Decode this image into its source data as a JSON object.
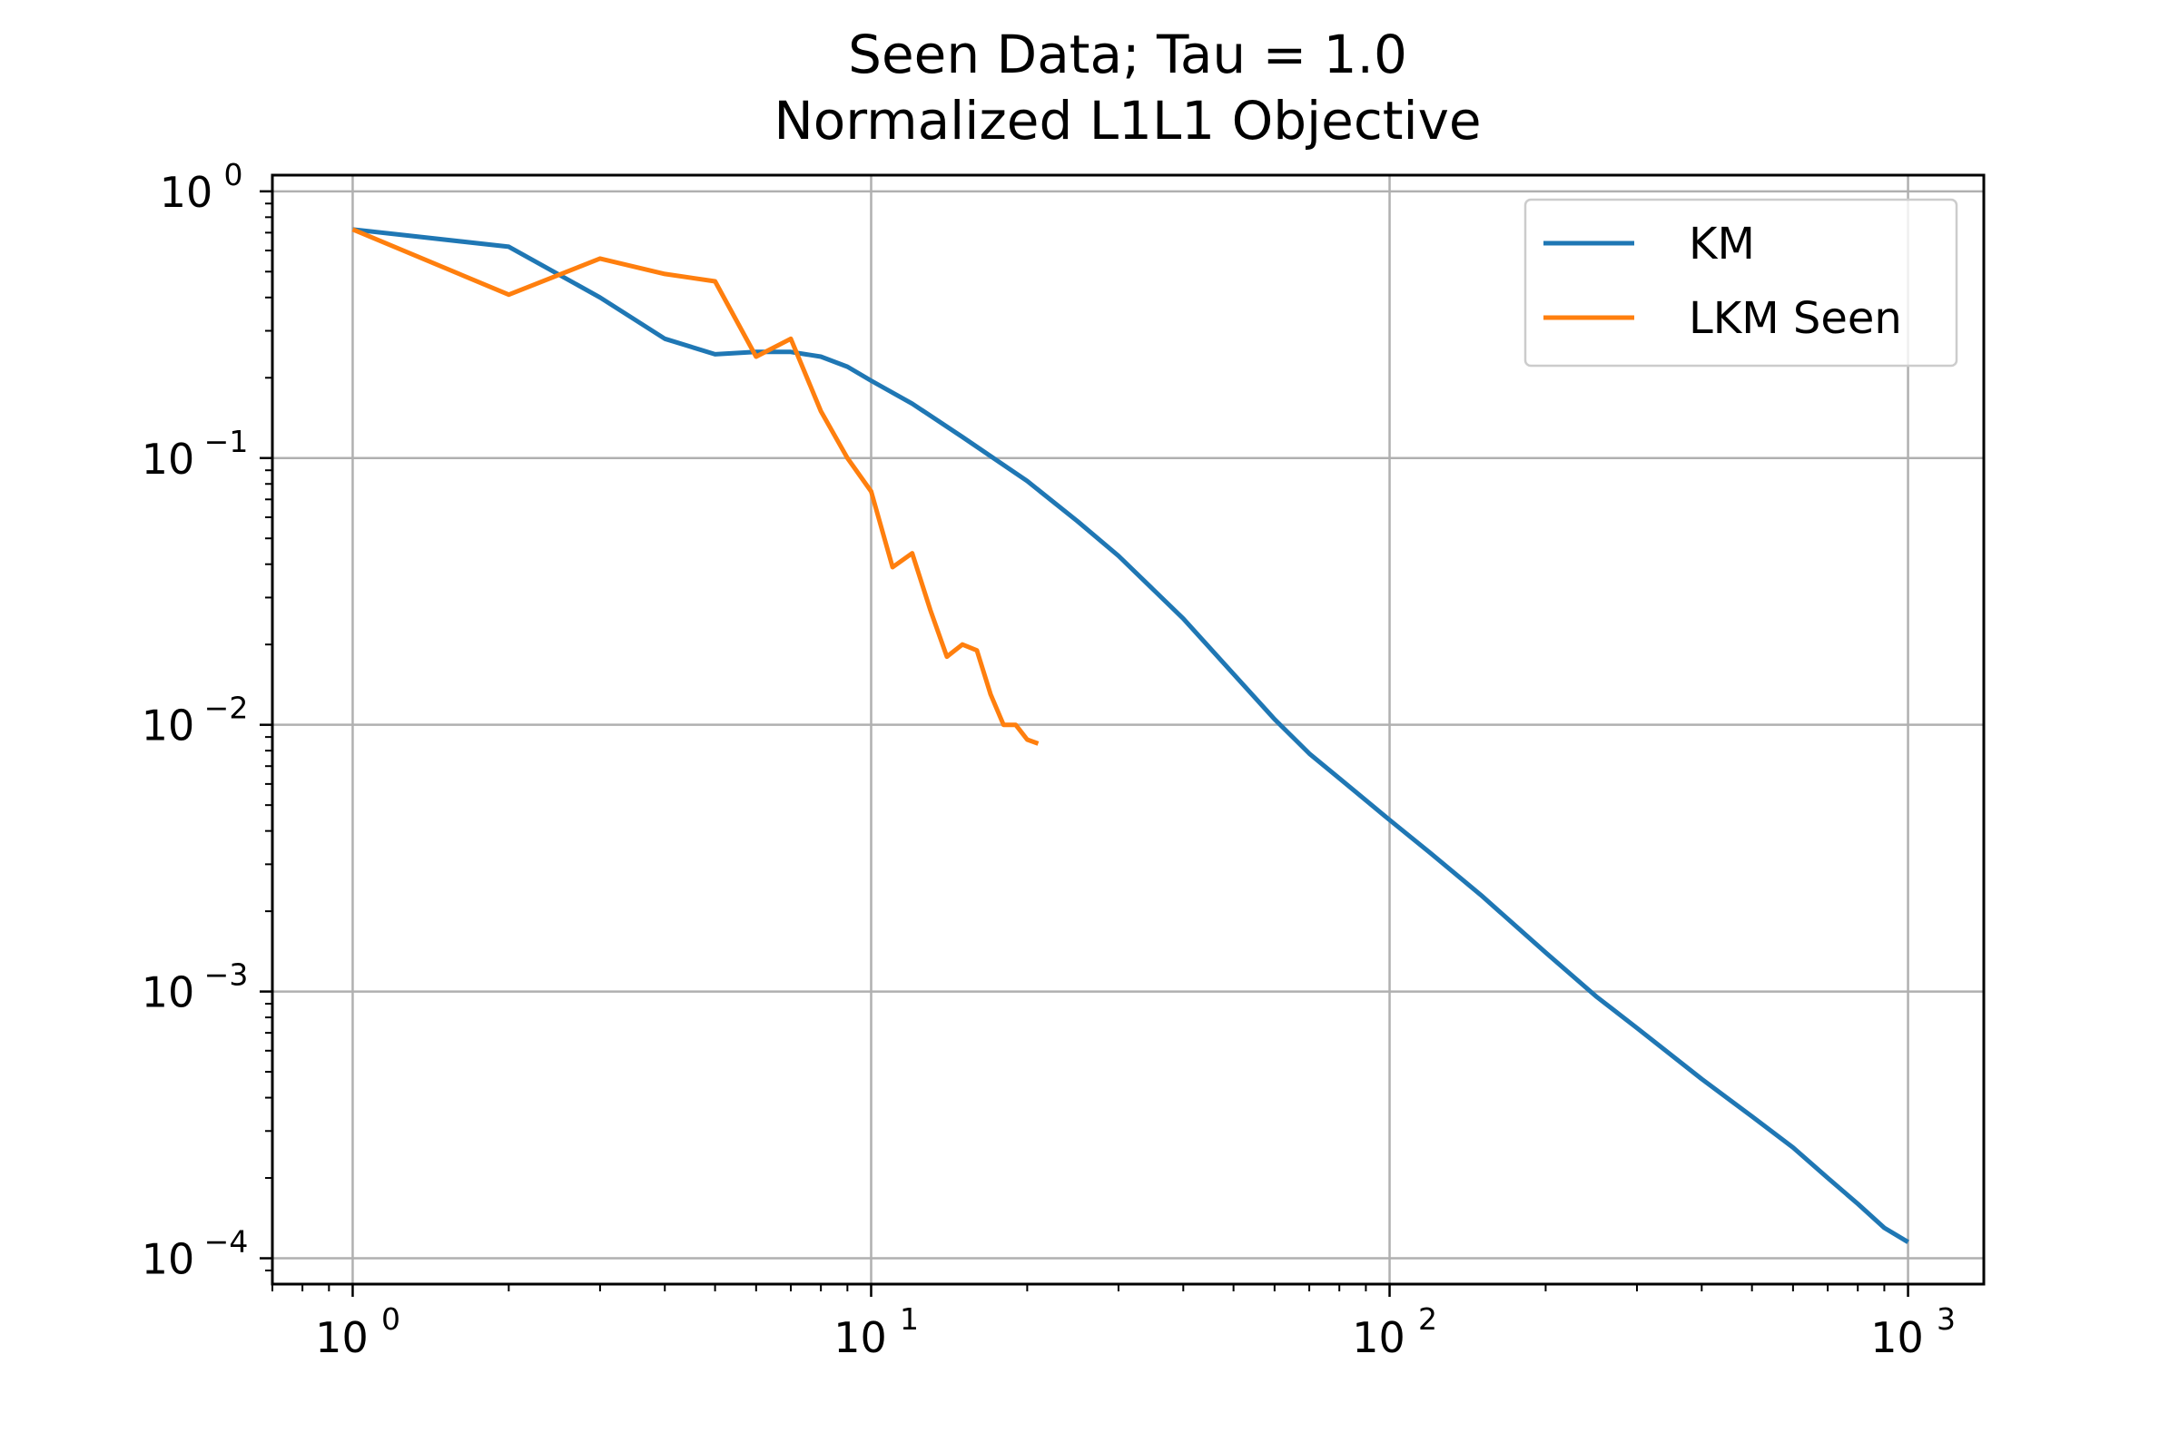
{
  "chart_data": {
    "type": "line",
    "title": "Seen Data; Tau = 1.0",
    "subtitle": "Normalized L1L1 Objective",
    "xlabel": "",
    "ylabel": "",
    "xscale": "log",
    "yscale": "log",
    "xlim": [
      0.7,
      1400
    ],
    "ylim": [
      8e-05,
      1.15
    ],
    "grid": true,
    "legend_position": "top-right",
    "x_ticks": [
      {
        "value": 1,
        "base": "10",
        "exp": "0"
      },
      {
        "value": 10,
        "base": "10",
        "exp": "1"
      },
      {
        "value": 100,
        "base": "10",
        "exp": "2"
      },
      {
        "value": 1000,
        "base": "10",
        "exp": "3"
      }
    ],
    "y_ticks": [
      {
        "value": 1,
        "base": "10",
        "exp": "0"
      },
      {
        "value": 0.1,
        "base": "10",
        "exp": "−1"
      },
      {
        "value": 0.01,
        "base": "10",
        "exp": "−2"
      },
      {
        "value": 0.001,
        "base": "10",
        "exp": "−3"
      },
      {
        "value": 0.0001,
        "base": "10",
        "exp": "−4"
      }
    ],
    "series": [
      {
        "name": "KM",
        "color": "#1f77b4",
        "x": [
          1,
          2,
          3,
          4,
          5,
          6,
          7,
          8,
          9,
          10,
          12,
          15,
          20,
          25,
          30,
          40,
          50,
          60,
          70,
          80,
          100,
          120,
          150,
          200,
          250,
          300,
          400,
          500,
          600,
          700,
          800,
          900,
          1000
        ],
        "y": [
          0.72,
          0.62,
          0.4,
          0.28,
          0.245,
          0.25,
          0.25,
          0.24,
          0.22,
          0.195,
          0.16,
          0.12,
          0.082,
          0.058,
          0.043,
          0.025,
          0.0155,
          0.0105,
          0.0078,
          0.0063,
          0.0044,
          0.0033,
          0.0023,
          0.0014,
          0.00096,
          0.00073,
          0.00047,
          0.00034,
          0.00026,
          0.0002,
          0.00016,
          0.00013,
          0.000115
        ]
      },
      {
        "name": "LKM Seen",
        "color": "#ff7f0e",
        "x": [
          1,
          2,
          3,
          4,
          5,
          6,
          7,
          8,
          9,
          10,
          11,
          12,
          13,
          14,
          15,
          16,
          17,
          18,
          19,
          20,
          21
        ],
        "y": [
          0.72,
          0.41,
          0.56,
          0.49,
          0.46,
          0.24,
          0.28,
          0.15,
          0.1,
          0.075,
          0.039,
          0.044,
          0.027,
          0.018,
          0.02,
          0.019,
          0.013,
          0.01,
          0.01,
          0.0088,
          0.0085
        ]
      }
    ]
  }
}
